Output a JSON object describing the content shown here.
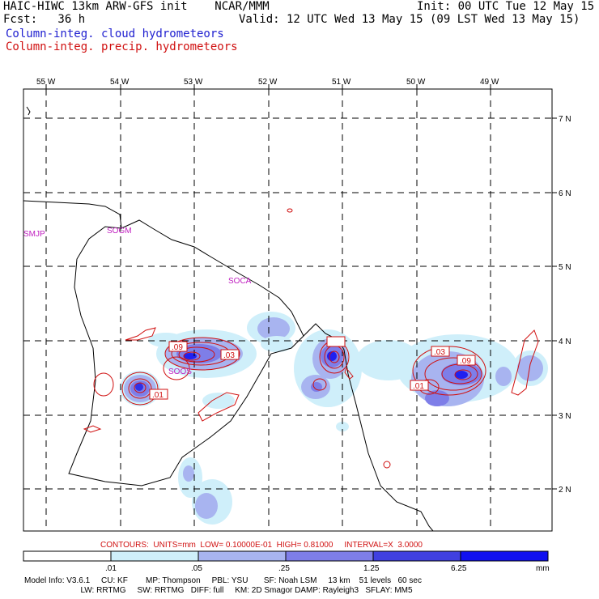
{
  "header": {
    "title": "HAIC-HIWC 13km ARW-GFS init    NCAR/MMM",
    "fcst": "Fcst:   36 h",
    "init": "Init: 00 UTC Tue 12 May 15",
    "valid": "Valid: 12 UTC Wed 13 May 15 (09 LST Wed 13 May 15)",
    "legend_cloud": "Column-integ. cloud hydrometeors",
    "legend_precip": "Column-integ. precip. hydrometeors",
    "colors": {
      "cloud": "#2020d0",
      "precip": "#d01010"
    }
  },
  "map": {
    "lon_labels": [
      "55 W",
      "54 W",
      "53 W",
      "52 W",
      "51 W",
      "50 W",
      "49 W"
    ],
    "lat_labels": [
      "7 N",
      "6 N",
      "5 N",
      "4 N",
      "3 N",
      "2 N"
    ],
    "stations": [
      "SMJP",
      "SOGM",
      "SOCA",
      "SOOS"
    ],
    "contour_labels": [
      ".09",
      ".03",
      ".01",
      ".03",
      ".09",
      ".01"
    ]
  },
  "contour_info": "CONTOURS:  UNITS=mm  LOW= 0.10000E-01  HIGH= 0.81000     INTERVAL=X  3.0000",
  "colorbar": {
    "ticks": [
      ".01",
      ".05",
      ".25",
      "1.25",
      "6.25"
    ],
    "units": "mm",
    "colors": [
      "#ffffff",
      "#cfeffa",
      "#a8b4f0",
      "#7e7ee8",
      "#4040e0",
      "#1010f0"
    ]
  },
  "model_info": {
    "line1": "Model Info: V3.6.1     CU: KF        MP: Thompson     PBL: YSU       SF: Noah LSM     13 km    51 levels   60 sec",
    "line2": "                         LW: RRTMG     SW: RRTMG   DIFF: full     KM: 2D Smagor DAMP: Rayleigh3   SFLAY: MM5"
  }
}
